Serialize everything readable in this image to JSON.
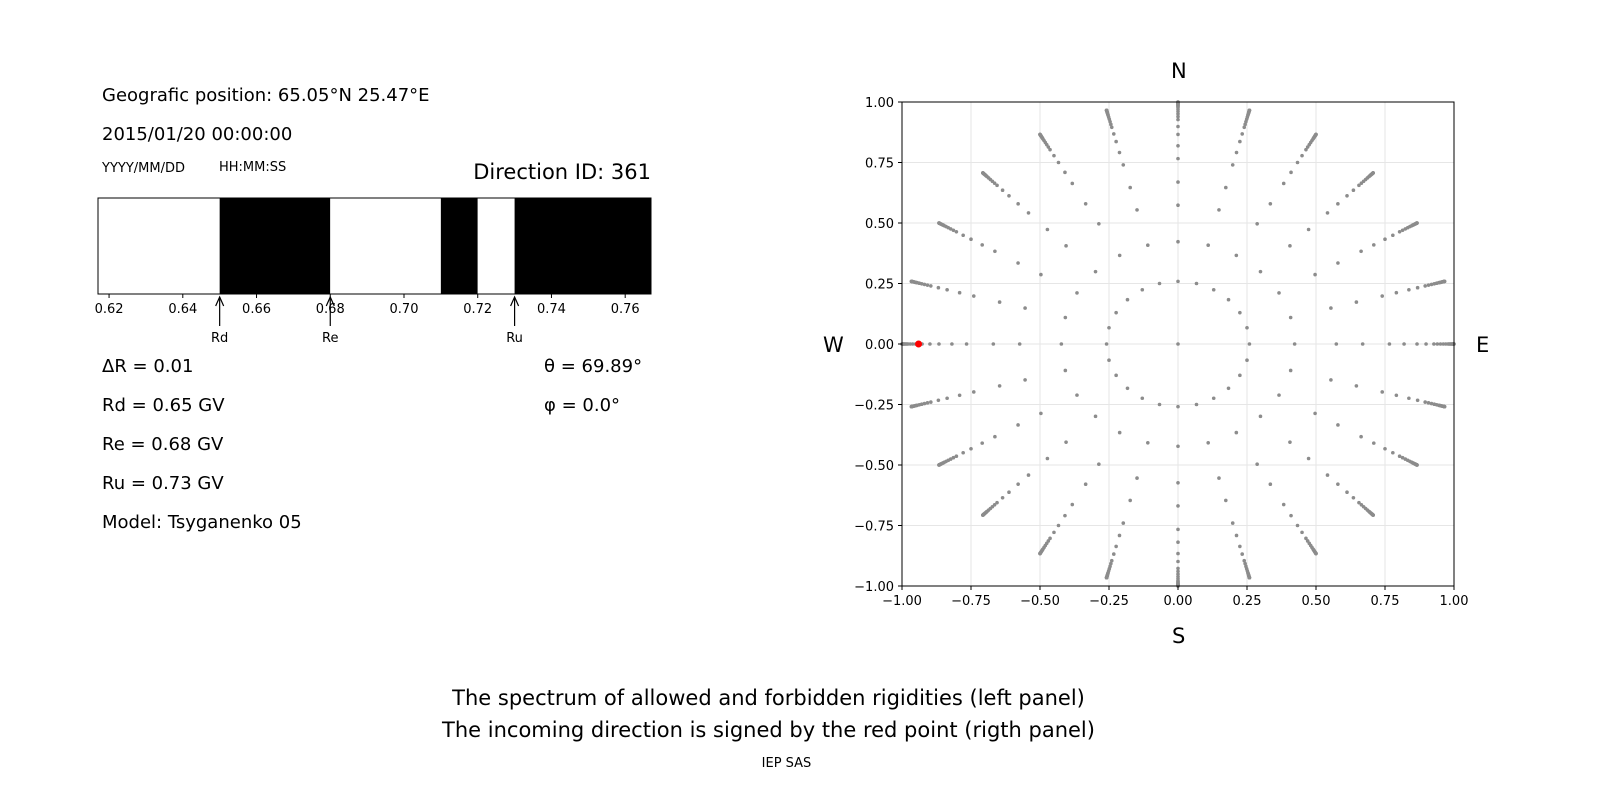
{
  "left_panel": {
    "geo_position": "Geografic position: 65.05°N 25.47°E",
    "datetime": "2015/01/20 00:00:00",
    "date_format": "YYYY/MM/DD",
    "time_format": "HH:MM:SS",
    "direction_id": "Direction ID: 361",
    "delta_r": "ΔR = 0.01",
    "rd": "Rd = 0.65 GV",
    "re": "Re = 0.68 GV",
    "ru": "Ru = 0.73 GV",
    "model": "Model: Tsyganenko 05",
    "theta": "θ = 69.89°",
    "phi": "φ = 0.0°"
  },
  "right_panel": {
    "north": "N",
    "south": "S",
    "west": "W",
    "east": "E"
  },
  "caption": {
    "line1": "The spectrum of allowed and forbidden rigidities (left panel)",
    "line2": "The incoming direction is signed by the red point (rigth panel)",
    "credit": "IEP SAS"
  },
  "colors": {
    "forbidden": "#000000",
    "allowed": "#ffffff",
    "grid_point": "#8c8c8c",
    "highlight_point": "#ff0000"
  },
  "chart_data": [
    {
      "type": "bar",
      "name": "rigidity-spectrum",
      "xlim": [
        0.617,
        0.767
      ],
      "xticks": [
        0.62,
        0.64,
        0.66,
        0.68,
        0.7,
        0.72,
        0.74,
        0.76
      ],
      "xtick_labels": [
        "0.62",
        "0.64",
        "0.66",
        "0.68",
        "0.70",
        "0.72",
        "0.74",
        "0.76"
      ],
      "segments": [
        {
          "from": 0.617,
          "to": 0.65,
          "state": "allowed"
        },
        {
          "from": 0.65,
          "to": 0.68,
          "state": "forbidden"
        },
        {
          "from": 0.68,
          "to": 0.71,
          "state": "allowed"
        },
        {
          "from": 0.71,
          "to": 0.72,
          "state": "forbidden"
        },
        {
          "from": 0.72,
          "to": 0.73,
          "state": "allowed"
        },
        {
          "from": 0.73,
          "to": 0.767,
          "state": "forbidden"
        }
      ],
      "markers": [
        {
          "label": "Rd",
          "value": 0.65
        },
        {
          "label": "Re",
          "value": 0.68
        },
        {
          "label": "Ru",
          "value": 0.73
        }
      ]
    },
    {
      "type": "scatter",
      "name": "incoming-directions",
      "xlim": [
        -1,
        1
      ],
      "ylim": [
        -1,
        1
      ],
      "xticks": [
        -1.0,
        -0.75,
        -0.5,
        -0.25,
        0.0,
        0.25,
        0.5,
        0.75,
        1.0
      ],
      "xtick_labels": [
        "−1.00",
        "−0.75",
        "−0.50",
        "−0.25",
        "0.00",
        "0.25",
        "0.50",
        "0.75",
        "1.00"
      ],
      "yticks": [
        1.0,
        0.75,
        0.5,
        0.25,
        0.0,
        -0.25,
        -0.5,
        -0.75,
        -1.0
      ],
      "ytick_labels": [
        "1.00",
        "0.75",
        "0.50",
        "0.25",
        "0.00",
        "−0.25",
        "−0.50",
        "−0.75",
        "−1.00"
      ],
      "grid": true,
      "directions": {
        "azimuth_step_deg": 15,
        "zenith_deg": [
          0,
          15,
          25,
          35,
          42,
          50,
          55,
          60,
          64,
          68,
          70,
          72,
          74,
          76,
          78,
          79,
          80,
          81,
          82,
          83,
          84,
          85,
          86,
          87,
          88,
          89,
          90
        ]
      },
      "highlight": {
        "x": -0.94,
        "y": 0.0
      }
    }
  ]
}
